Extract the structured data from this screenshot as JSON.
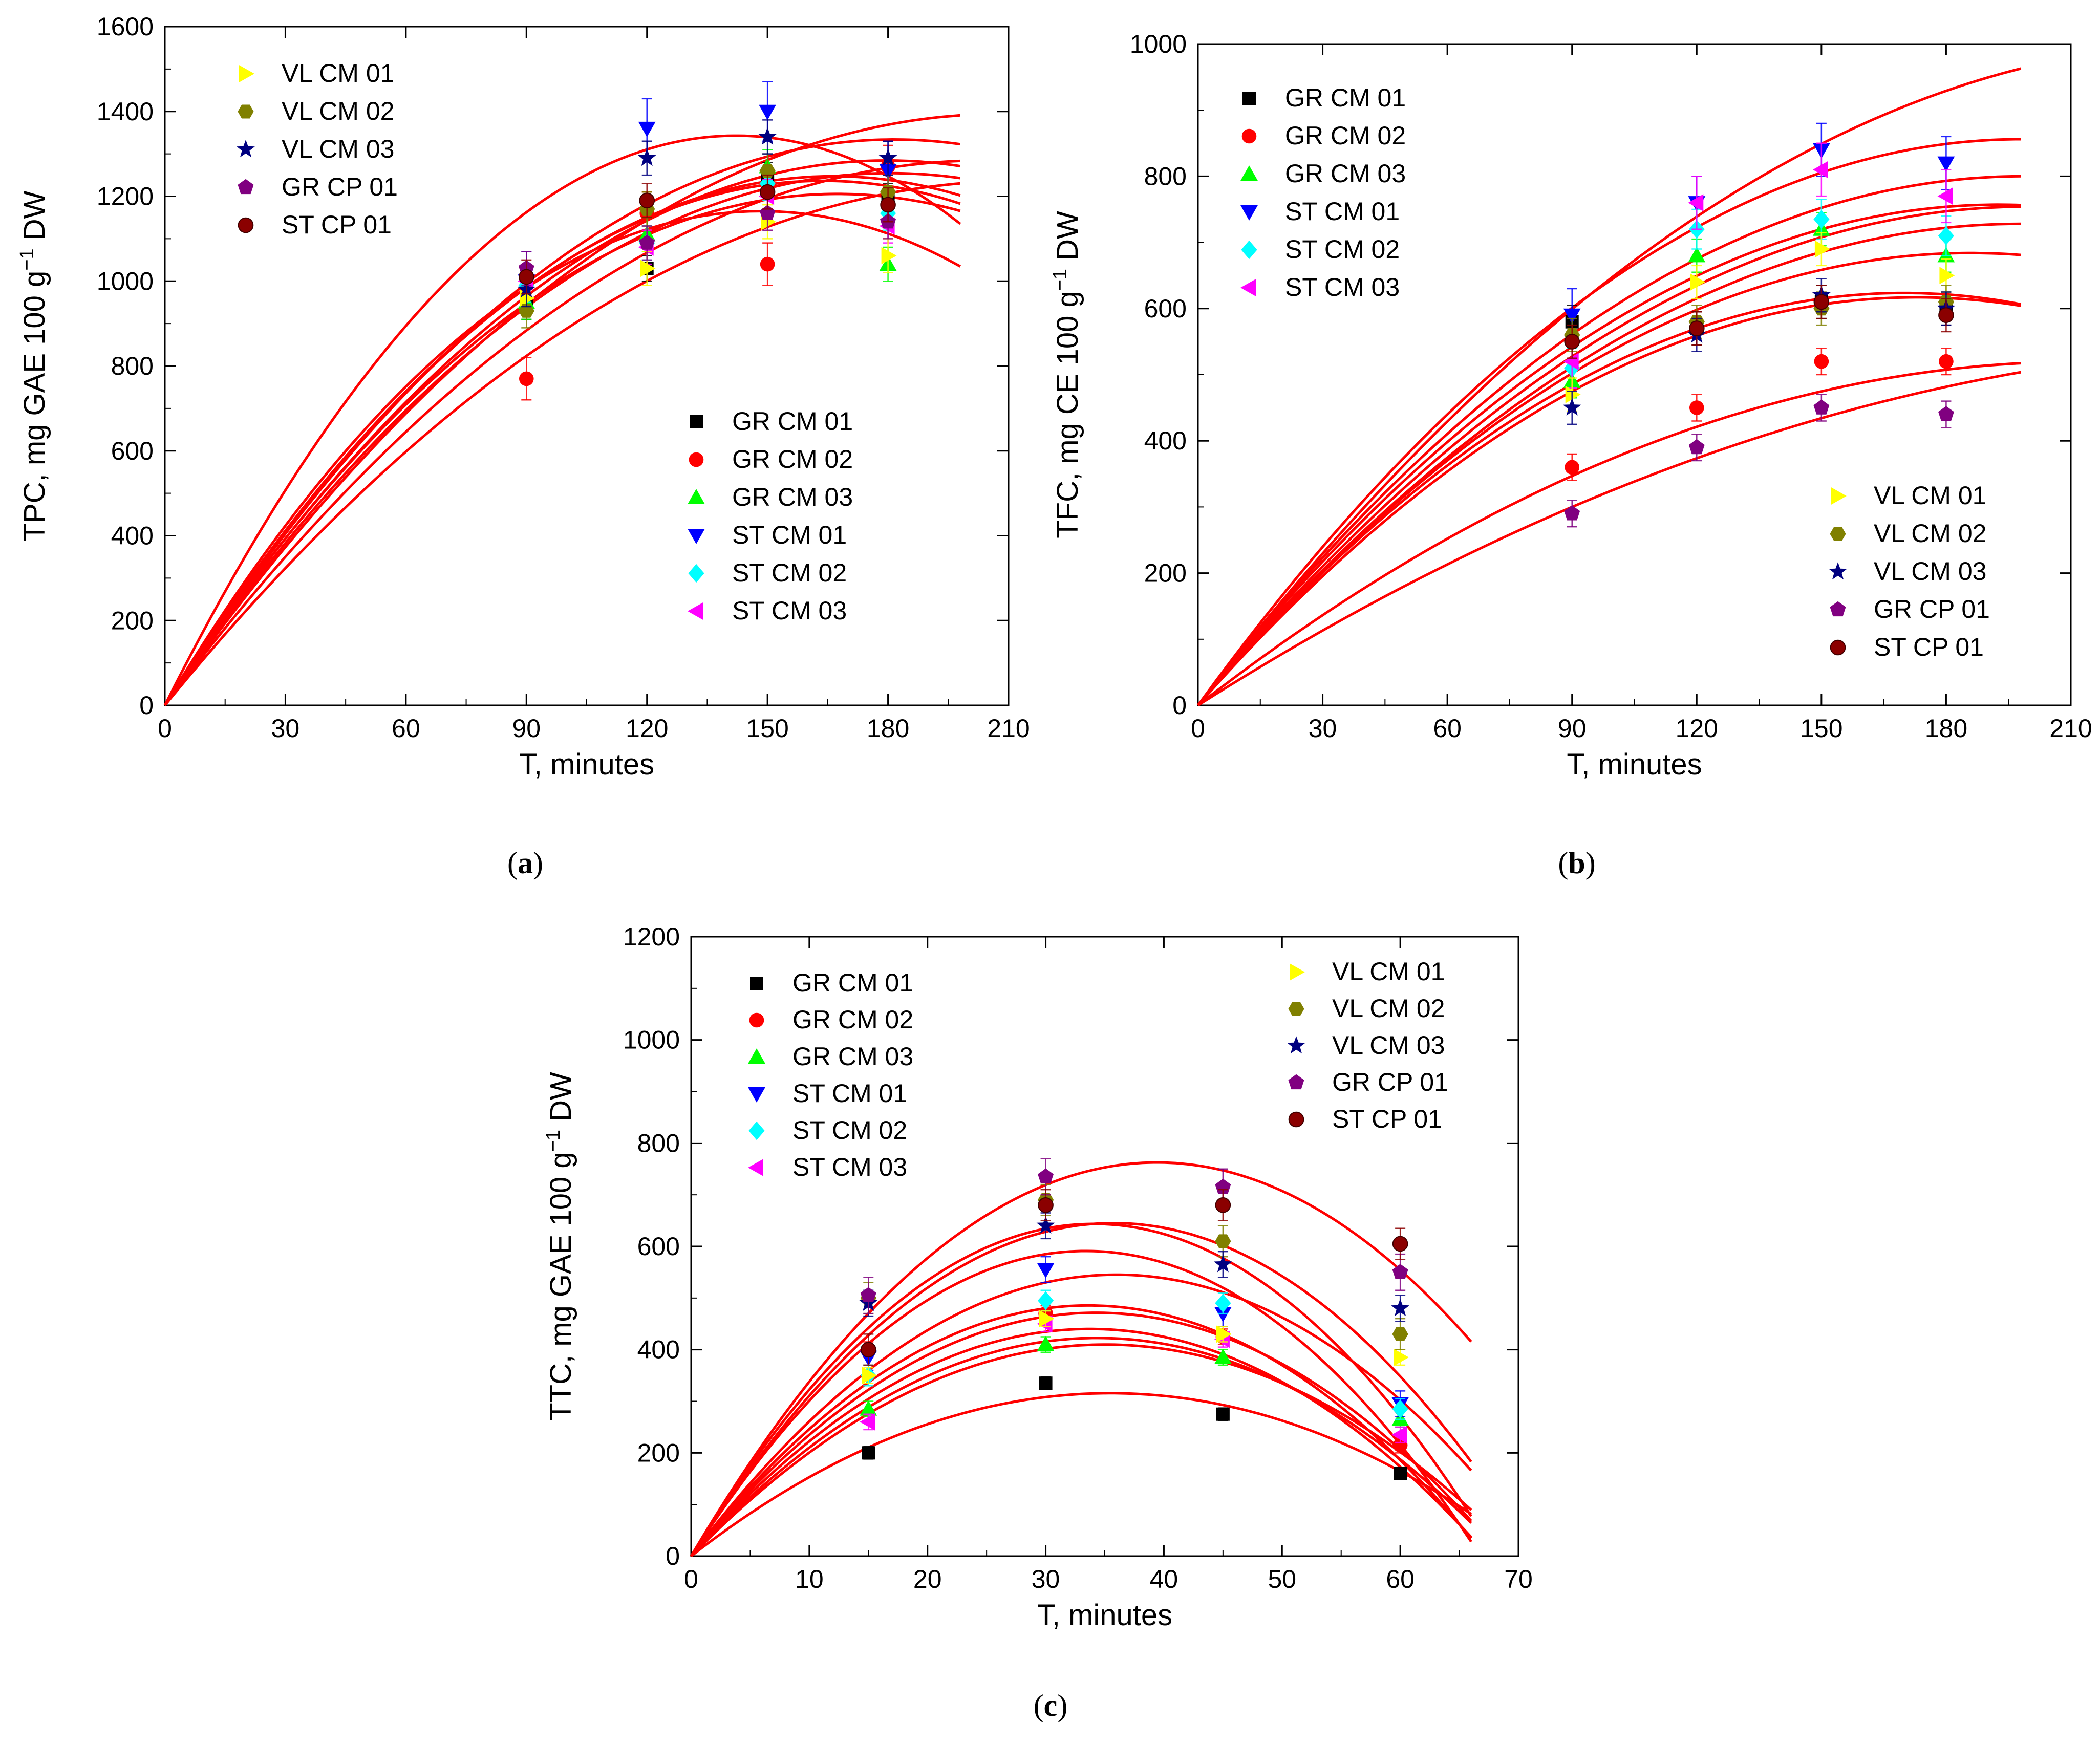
{
  "figure": {
    "panels": [
      {
        "id": "a",
        "label": "(a)",
        "colors": {
          "curve": "#ff0000",
          "frame": "#000000"
        }
      },
      {
        "id": "b",
        "label": "(b)",
        "colors": {
          "curve": "#ff0000",
          "frame": "#000000"
        }
      },
      {
        "id": "c",
        "label": "(c)",
        "colors": {
          "curve": "#ff0000",
          "frame": "#000000"
        }
      }
    ]
  },
  "chart_data": [
    {
      "type": "scatter",
      "panel": "a",
      "title": "",
      "xlabel": "T, minutes",
      "ylabel_main": "TPC, mg GAE 100 g",
      "ylabel_sup": "−1",
      "ylabel_tail": " DW",
      "xlim": [
        0,
        210
      ],
      "ylim": [
        0,
        1600
      ],
      "xticks": [
        0,
        30,
        60,
        90,
        120,
        150,
        180,
        210
      ],
      "yticks": [
        0,
        200,
        400,
        600,
        800,
        1000,
        1200,
        1400,
        1600
      ],
      "x": [
        90,
        120,
        150,
        180
      ],
      "curve_x_max": 198,
      "legend_placement": "top-left and center-right",
      "legends": [
        {
          "position": "top-left",
          "entries": [
            "VL CM 01",
            "VL CM 02",
            "VL CM 03",
            "GR CP 01",
            "ST CP 01"
          ]
        },
        {
          "position": "center-right",
          "entries": [
            "GR CM 01",
            "GR CM 02",
            "GR CM 03",
            "ST CM 01",
            "ST CM 02",
            "ST CM 03"
          ]
        }
      ],
      "series": [
        {
          "name": "GR CM 01",
          "marker": "square",
          "color": "#000000",
          "values": [
            940,
            1030,
            1250,
            1200
          ],
          "error": 30
        },
        {
          "name": "GR CM 02",
          "marker": "circle",
          "color": "#ff0000",
          "values": [
            770,
            1160,
            1040,
            1270
          ],
          "error": 50
        },
        {
          "name": "GR CM 03",
          "marker": "triangle-up",
          "color": "#00ff00",
          "values": [
            950,
            1110,
            1270,
            1040
          ],
          "error": 40
        },
        {
          "name": "ST CM 01",
          "marker": "triangle-down",
          "color": "#0000ff",
          "values": [
            1000,
            1360,
            1400,
            1260
          ],
          "error": 70
        },
        {
          "name": "ST CM 02",
          "marker": "diamond",
          "color": "#00ffff",
          "values": [
            990,
            1090,
            1230,
            1160
          ],
          "error": 40
        },
        {
          "name": "ST CM 03",
          "marker": "triangle-left",
          "color": "#ff00ff",
          "values": [
            1000,
            1080,
            1200,
            1130
          ],
          "error": 40
        },
        {
          "name": "VL CM 01",
          "marker": "triangle-right",
          "color": "#ffff00",
          "values": [
            960,
            1030,
            1140,
            1060
          ],
          "error": 40
        },
        {
          "name": "VL CM 02",
          "marker": "hexagon",
          "color": "#808000",
          "values": [
            930,
            1170,
            1260,
            1210
          ],
          "error": 40
        },
        {
          "name": "VL CM 03",
          "marker": "star",
          "color": "#000080",
          "values": [
            980,
            1290,
            1340,
            1290
          ],
          "error": 40
        },
        {
          "name": "GR CP 01",
          "marker": "pentagon",
          "color": "#800080",
          "values": [
            1030,
            1090,
            1160,
            1140
          ],
          "error": 40
        },
        {
          "name": "ST CP 01",
          "marker": "sphere",
          "color": "#8b0000",
          "values": [
            1010,
            1190,
            1210,
            1180
          ],
          "error": 40
        }
      ],
      "fit_curves": [
        {
          "a": 18.9,
          "b": 0.0665
        },
        {
          "a": 15.1,
          "b": 0.0461
        },
        {
          "a": 15.7,
          "b": 0.0529
        },
        {
          "a": 15.0,
          "b": 0.0451
        },
        {
          "a": 14.3,
          "b": 0.0398
        },
        {
          "a": 13.4,
          "b": 0.0322
        },
        {
          "a": 14.7,
          "b": 0.0405
        },
        {
          "a": 13.9,
          "b": 0.0385
        },
        {
          "a": 14.4,
          "b": 0.043
        },
        {
          "a": 12.6,
          "b": 0.0309
        },
        {
          "a": 11.6,
          "b": 0.0272
        }
      ]
    },
    {
      "type": "scatter",
      "panel": "b",
      "title": "",
      "xlabel": "T, minutes",
      "ylabel_main": "TFC, mg CE 100 g",
      "ylabel_sup": "−1",
      "ylabel_tail": " DW",
      "xlim": [
        0,
        210
      ],
      "ylim": [
        0,
        1000
      ],
      "xticks": [
        0,
        30,
        60,
        90,
        120,
        150,
        180,
        210
      ],
      "yticks": [
        0,
        200,
        400,
        600,
        800,
        1000
      ],
      "x": [
        90,
        120,
        150,
        180
      ],
      "curve_x_max": 198,
      "legend_placement": "top-left and bottom-right",
      "legends": [
        {
          "position": "top-left",
          "entries": [
            "GR CM 01",
            "GR CM 02",
            "GR CM 03",
            "ST CM 01",
            "ST CM 02",
            "ST CM 03"
          ]
        },
        {
          "position": "bottom-right",
          "entries": [
            "VL CM 01",
            "VL CM 02",
            "VL CM 03",
            "GR CP 01",
            "ST CP 01"
          ]
        }
      ],
      "series": [
        {
          "name": "GR CM 01",
          "marker": "square",
          "color": "#000000",
          "values": [
            580,
            570,
            610,
            600
          ],
          "error": 25
        },
        {
          "name": "GR CM 02",
          "marker": "circle",
          "color": "#ff0000",
          "values": [
            360,
            450,
            520,
            520
          ],
          "error": 20
        },
        {
          "name": "GR CM 03",
          "marker": "triangle-up",
          "color": "#00ff00",
          "values": [
            490,
            680,
            720,
            680
          ],
          "error": 25
        },
        {
          "name": "ST CM 01",
          "marker": "triangle-down",
          "color": "#0000ff",
          "values": [
            590,
            760,
            840,
            820
          ],
          "error": 40
        },
        {
          "name": "ST CM 02",
          "marker": "diamond",
          "color": "#00ffff",
          "values": [
            510,
            720,
            735,
            710
          ],
          "error": 30
        },
        {
          "name": "ST CM 03",
          "marker": "triangle-left",
          "color": "#ff00ff",
          "values": [
            520,
            760,
            810,
            770
          ],
          "error": 40
        },
        {
          "name": "VL CM 01",
          "marker": "triangle-right",
          "color": "#ffff00",
          "values": [
            470,
            640,
            690,
            650
          ],
          "error": 25
        },
        {
          "name": "VL CM 02",
          "marker": "hexagon",
          "color": "#808000",
          "values": [
            560,
            580,
            600,
            610
          ],
          "error": 25
        },
        {
          "name": "VL CM 03",
          "marker": "star",
          "color": "#000080",
          "values": [
            450,
            560,
            620,
            600
          ],
          "error": 25
        },
        {
          "name": "GR CP 01",
          "marker": "pentagon",
          "color": "#800080",
          "values": [
            290,
            390,
            450,
            440
          ],
          "error": 20
        },
        {
          "name": "ST CP 01",
          "marker": "sphere",
          "color": "#8b0000",
          "values": [
            550,
            570,
            610,
            590
          ],
          "error": 25
        }
      ],
      "fit_curves": [
        {
          "a": 8.15,
          "b": 0.0166
        },
        {
          "a": 8.64,
          "b": 0.0218
        },
        {
          "a": 8.06,
          "b": 0.0203
        },
        {
          "a": 7.86,
          "b": 0.0204
        },
        {
          "a": 7.57,
          "b": 0.019
        },
        {
          "a": 7.36,
          "b": 0.0186
        },
        {
          "a": 7.36,
          "b": 0.0198
        },
        {
          "a": 7.34,
          "b": 0.0216
        },
        {
          "a": 7.13,
          "b": 0.0206
        },
        {
          "a": 4.89,
          "b": 0.0115
        },
        {
          "a": 3.99,
          "b": 0.0073
        }
      ]
    },
    {
      "type": "scatter",
      "panel": "c",
      "title": "",
      "xlabel": "T, minutes",
      "ylabel_main": "TTC, mg GAE 100 g",
      "ylabel_sup": "−1",
      "ylabel_tail": " DW",
      "xlim": [
        0,
        70
      ],
      "ylim": [
        0,
        1200
      ],
      "xticks": [
        0,
        10,
        20,
        30,
        40,
        50,
        60,
        70
      ],
      "yticks": [
        0,
        200,
        400,
        600,
        800,
        1000,
        1200
      ],
      "x": [
        15,
        30,
        45,
        60
      ],
      "curve_x_max": 66,
      "legend_placement": "top-left and top-right",
      "legends": [
        {
          "position": "top-left",
          "entries": [
            "GR CM 01",
            "GR CM 02",
            "GR CM 03",
            "ST CM 01",
            "ST CM 02",
            "ST CM 03"
          ]
        },
        {
          "position": "top-right",
          "entries": [
            "VL CM 01",
            "VL CM 02",
            "VL CM 03",
            "GR CP 01",
            "ST CP 01"
          ]
        }
      ],
      "series": [
        {
          "name": "GR CM 01",
          "marker": "square",
          "color": "#000000",
          "values": [
            200,
            335,
            275,
            160
          ],
          "error": 12
        },
        {
          "name": "GR CM 02",
          "marker": "circle",
          "color": "#ff0000",
          "values": [
            400,
            470,
            425,
            215
          ],
          "error": 15
        },
        {
          "name": "GR CM 03",
          "marker": "triangle-up",
          "color": "#00ff00",
          "values": [
            285,
            410,
            385,
            265
          ],
          "error": 15
        },
        {
          "name": "ST CM 01",
          "marker": "triangle-down",
          "color": "#0000ff",
          "values": [
            385,
            555,
            470,
            295
          ],
          "error": 25
        },
        {
          "name": "ST CM 02",
          "marker": "diamond",
          "color": "#00ffff",
          "values": [
            350,
            495,
            490,
            285
          ],
          "error": 20
        },
        {
          "name": "ST CM 03",
          "marker": "triangle-left",
          "color": "#ff00ff",
          "values": [
            260,
            450,
            420,
            235
          ],
          "error": 15
        },
        {
          "name": "VL CM 01",
          "marker": "triangle-right",
          "color": "#ffff00",
          "values": [
            350,
            460,
            430,
            385
          ],
          "error": 15
        },
        {
          "name": "VL CM 02",
          "marker": "hexagon",
          "color": "#808000",
          "values": [
            500,
            690,
            610,
            430
          ],
          "error": 30
        },
        {
          "name": "VL CM 03",
          "marker": "star",
          "color": "#000080",
          "values": [
            490,
            640,
            565,
            480
          ],
          "error": 25
        },
        {
          "name": "GR CP 01",
          "marker": "pentagon",
          "color": "#800080",
          "values": [
            505,
            735,
            715,
            550
          ],
          "error": 35
        },
        {
          "name": "ST CP 01",
          "marker": "sphere",
          "color": "#8b0000",
          "values": [
            400,
            680,
            680,
            605
          ],
          "error": 30
        }
      ],
      "fit_curves": [
        {
          "a": 38.7,
          "b": 0.491
        },
        {
          "a": 36.1,
          "b": 0.505
        },
        {
          "a": 37.8,
          "b": 0.555
        },
        {
          "a": 35.4,
          "b": 0.53
        },
        {
          "a": 30.3,
          "b": 0.421
        },
        {
          "a": 28.9,
          "b": 0.43
        },
        {
          "a": 27.5,
          "b": 0.401
        },
        {
          "a": 26.1,
          "b": 0.387
        },
        {
          "a": 24.6,
          "b": 0.358
        },
        {
          "a": 23.4,
          "b": 0.334
        },
        {
          "a": 17.8,
          "b": 0.251
        }
      ]
    }
  ]
}
